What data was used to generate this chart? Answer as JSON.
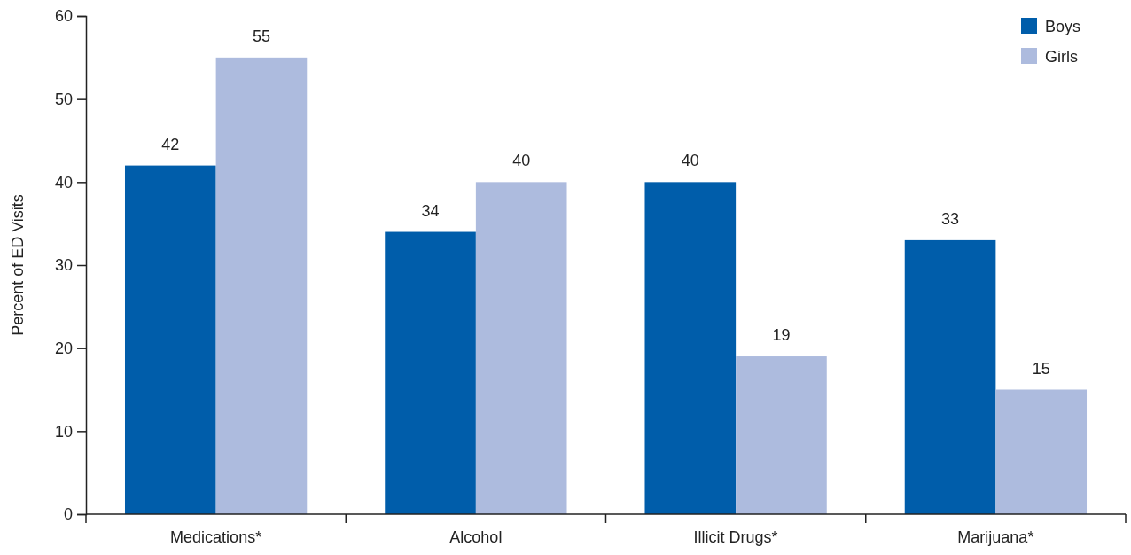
{
  "chart_data": {
    "type": "bar",
    "ylabel": "Percent of ED Visits",
    "categories": [
      "Medications*",
      "Alcohol",
      "Illicit Drugs*",
      "Marijuana*"
    ],
    "series": [
      {
        "name": "Boys",
        "color": "#005daa",
        "values": [
          42,
          34,
          40,
          33
        ]
      },
      {
        "name": "Girls",
        "color": "#adbbde",
        "values": [
          55,
          40,
          19,
          15
        ]
      }
    ],
    "ylim": [
      0,
      60
    ],
    "yticks": [
      0,
      10,
      20,
      30,
      40,
      50,
      60
    ],
    "data_labels": true,
    "legend": "top right",
    "grid": false
  }
}
